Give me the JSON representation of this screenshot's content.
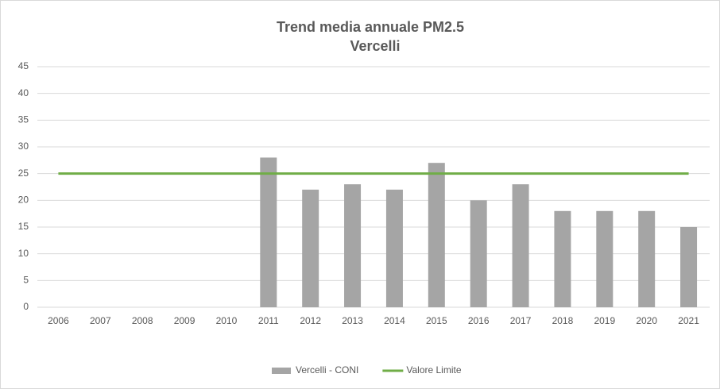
{
  "chart_data": {
    "type": "bar",
    "title": "Trend media annuale PM2.5",
    "subtitle": "Vercelli",
    "categories": [
      "2006",
      "2007",
      "2008",
      "2009",
      "2010",
      "2011",
      "2012",
      "2013",
      "2014",
      "2015",
      "2016",
      "2017",
      "2018",
      "2019",
      "2020",
      "2021"
    ],
    "series": [
      {
        "name": "Vercelli - CONI",
        "type": "bar",
        "color": "#a5a5a5",
        "values": [
          null,
          null,
          null,
          null,
          null,
          28,
          22,
          23,
          22,
          27,
          20,
          23,
          18,
          18,
          18,
          15
        ]
      },
      {
        "name": "Valore Limite",
        "type": "line",
        "color": "#70ad47",
        "values": [
          25,
          25,
          25,
          25,
          25,
          25,
          25,
          25,
          25,
          25,
          25,
          25,
          25,
          25,
          25,
          25
        ]
      }
    ],
    "ylim": [
      0,
      45
    ],
    "yticks": [
      0,
      5,
      10,
      15,
      20,
      25,
      30,
      35,
      40,
      45
    ],
    "grid": true,
    "legend": "bottom"
  }
}
